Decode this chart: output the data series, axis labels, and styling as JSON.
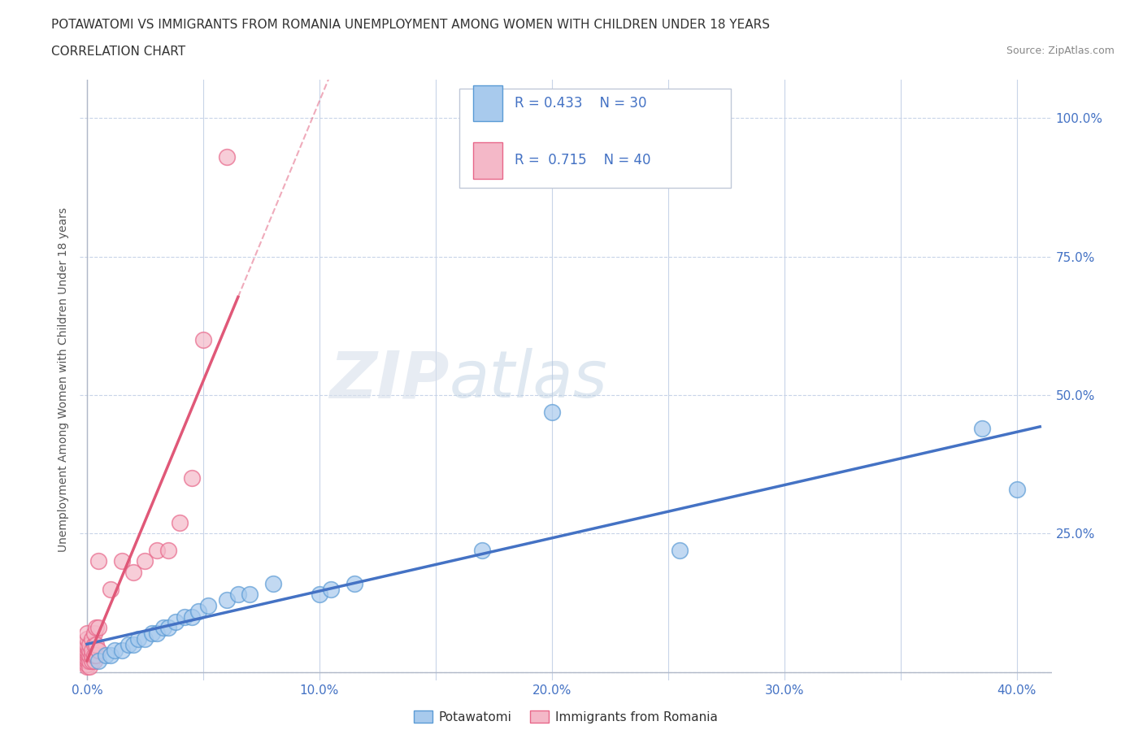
{
  "title_line1": "POTAWATOMI VS IMMIGRANTS FROM ROMANIA UNEMPLOYMENT AMONG WOMEN WITH CHILDREN UNDER 18 YEARS",
  "title_line2": "CORRELATION CHART",
  "source": "Source: ZipAtlas.com",
  "xlim": [
    -0.003,
    0.415
  ],
  "ylim": [
    -0.015,
    1.07
  ],
  "ylabel": "Unemployment Among Women with Children Under 18 years",
  "watermark_zip": "ZIP",
  "watermark_atlas": "atlas",
  "blue_R": 0.433,
  "blue_N": 30,
  "pink_R": 0.715,
  "pink_N": 40,
  "blue_color": "#a8caed",
  "pink_color": "#f4b8c8",
  "blue_edge_color": "#5b9bd5",
  "pink_edge_color": "#e8678a",
  "blue_line_color": "#4472c4",
  "pink_line_color": "#e05878",
  "blue_scatter": [
    [
      0.005,
      0.02
    ],
    [
      0.008,
      0.03
    ],
    [
      0.01,
      0.03
    ],
    [
      0.012,
      0.04
    ],
    [
      0.015,
      0.04
    ],
    [
      0.018,
      0.05
    ],
    [
      0.02,
      0.05
    ],
    [
      0.022,
      0.06
    ],
    [
      0.025,
      0.06
    ],
    [
      0.028,
      0.07
    ],
    [
      0.03,
      0.07
    ],
    [
      0.033,
      0.08
    ],
    [
      0.035,
      0.08
    ],
    [
      0.038,
      0.09
    ],
    [
      0.042,
      0.1
    ],
    [
      0.045,
      0.1
    ],
    [
      0.048,
      0.11
    ],
    [
      0.052,
      0.12
    ],
    [
      0.06,
      0.13
    ],
    [
      0.065,
      0.14
    ],
    [
      0.07,
      0.14
    ],
    [
      0.08,
      0.16
    ],
    [
      0.1,
      0.14
    ],
    [
      0.105,
      0.15
    ],
    [
      0.115,
      0.16
    ],
    [
      0.17,
      0.22
    ],
    [
      0.2,
      0.47
    ],
    [
      0.255,
      0.22
    ],
    [
      0.385,
      0.44
    ],
    [
      0.4,
      0.33
    ]
  ],
  "pink_scatter": [
    [
      0.0,
      0.01
    ],
    [
      0.0,
      0.015
    ],
    [
      0.0,
      0.02
    ],
    [
      0.0,
      0.025
    ],
    [
      0.0,
      0.03
    ],
    [
      0.0,
      0.035
    ],
    [
      0.0,
      0.04
    ],
    [
      0.0,
      0.045
    ],
    [
      0.0,
      0.05
    ],
    [
      0.0,
      0.06
    ],
    [
      0.0,
      0.07
    ],
    [
      0.001,
      0.01
    ],
    [
      0.001,
      0.02
    ],
    [
      0.001,
      0.03
    ],
    [
      0.001,
      0.04
    ],
    [
      0.001,
      0.05
    ],
    [
      0.002,
      0.02
    ],
    [
      0.002,
      0.03
    ],
    [
      0.002,
      0.04
    ],
    [
      0.002,
      0.06
    ],
    [
      0.003,
      0.02
    ],
    [
      0.003,
      0.03
    ],
    [
      0.003,
      0.05
    ],
    [
      0.003,
      0.07
    ],
    [
      0.004,
      0.03
    ],
    [
      0.004,
      0.05
    ],
    [
      0.004,
      0.08
    ],
    [
      0.005,
      0.04
    ],
    [
      0.005,
      0.08
    ],
    [
      0.005,
      0.2
    ],
    [
      0.01,
      0.15
    ],
    [
      0.015,
      0.2
    ],
    [
      0.02,
      0.18
    ],
    [
      0.025,
      0.2
    ],
    [
      0.03,
      0.22
    ],
    [
      0.035,
      0.22
    ],
    [
      0.04,
      0.27
    ],
    [
      0.045,
      0.35
    ],
    [
      0.05,
      0.6
    ],
    [
      0.06,
      0.93
    ]
  ],
  "grid_color": "#c8d4e8",
  "tick_color": "#4472c4",
  "background_color": "#ffffff",
  "title_color": "#333333",
  "ylabel_ticks": [
    0.0,
    0.25,
    0.5,
    0.75,
    1.0
  ],
  "xlabel_ticks": [
    0.0,
    0.05,
    0.1,
    0.15,
    0.2,
    0.25,
    0.3,
    0.35,
    0.4
  ],
  "x_tick_labels": [
    "0.0%",
    "",
    "10.0%",
    "",
    "20.0%",
    "",
    "30.0%",
    "",
    "40.0%"
  ],
  "y_tick_labels": [
    "",
    "25.0%",
    "50.0%",
    "75.0%",
    "100.0%"
  ]
}
